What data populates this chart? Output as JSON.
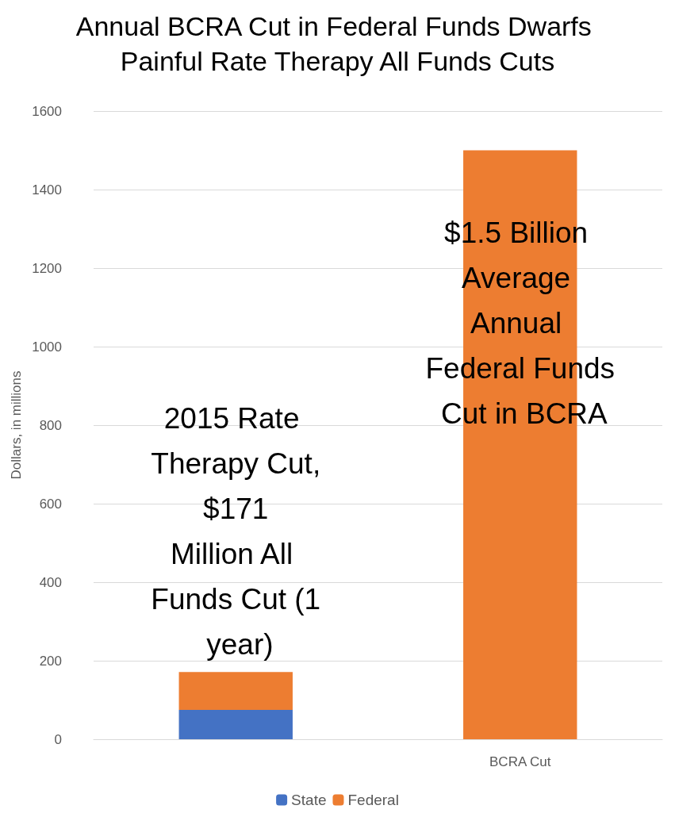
{
  "chart_data": {
    "type": "bar",
    "title": "Annual BCRA Cut in Federal Funds Dwarfs Painful Rate Therapy All Funds Cuts",
    "ylabel": "Dollars, in millions",
    "categories": [
      null,
      "BCRA Cut"
    ],
    "series": [
      {
        "name": "State",
        "color": "#4472c4",
        "values": [
          75,
          0
        ]
      },
      {
        "name": "Federal",
        "color": "#ed7d31",
        "values": [
          96,
          1500
        ]
      }
    ],
    "stacked": true,
    "ylim": [
      0,
      1600
    ],
    "yticks": [
      0,
      200,
      400,
      600,
      800,
      1000,
      1200,
      1400,
      1600
    ],
    "grid": "y",
    "legend": "bottom",
    "annotations": [
      "2015 Rate Therapy Cut, $171 Million All Funds Cut (1 year)",
      "$1.5 Billion Average Annual Federal Funds Cut in BCRA"
    ]
  }
}
